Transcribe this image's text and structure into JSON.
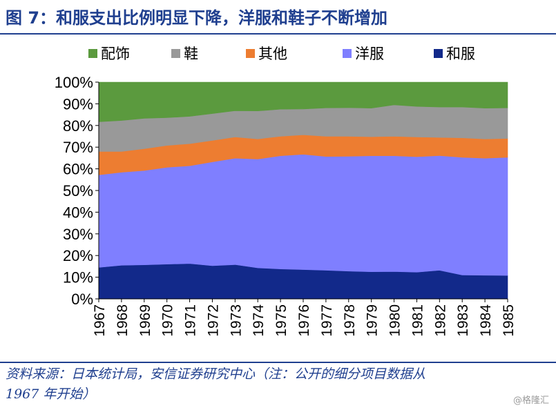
{
  "header": {
    "title": "图 7：和服支出比例明显下降，洋服和鞋子不断增加"
  },
  "footer": {
    "source_line1": "资料来源：日本统计局，安信证券研究中心（注：公开的细分项目数据从",
    "source_line2": "1967 年开始）",
    "watermark": "@格隆汇"
  },
  "colors": {
    "配饰": "#5B9A3E",
    "鞋": "#999999",
    "其他": "#ED7D31",
    "洋服": "#7F7FFF",
    "和服": "#12298A"
  },
  "chart_data": {
    "type": "area",
    "stacked": true,
    "title": "",
    "xlabel": "",
    "ylabel": "",
    "ylim": [
      0,
      100
    ],
    "y_tick_labels": [
      "0%",
      "10%",
      "20%",
      "30%",
      "40%",
      "50%",
      "60%",
      "70%",
      "80%",
      "90%",
      "100%"
    ],
    "legend_position": "top",
    "legend": [
      "配饰",
      "鞋",
      "其他",
      "洋服",
      "和服"
    ],
    "categories": [
      "1967",
      "1968",
      "1969",
      "1970",
      "1971",
      "1972",
      "1973",
      "1974",
      "1975",
      "1976",
      "1977",
      "1978",
      "1979",
      "1980",
      "1981",
      "1982",
      "1983",
      "1984",
      "1985"
    ],
    "series": [
      {
        "name": "和服",
        "values": [
          14.5,
          15.5,
          15.7,
          16.0,
          16.3,
          15.3,
          15.8,
          14.3,
          13.8,
          13.5,
          13.2,
          12.8,
          12.5,
          12.6,
          12.3,
          13.2,
          11.0,
          10.9,
          10.8
        ]
      },
      {
        "name": "洋服",
        "values": [
          42.7,
          42.9,
          43.5,
          44.7,
          45.1,
          47.9,
          49.1,
          50.2,
          52.2,
          53.2,
          52.5,
          53.0,
          53.5,
          53.4,
          53.3,
          52.9,
          54.3,
          54.0,
          54.5
        ]
      },
      {
        "name": "其他",
        "values": [
          10.8,
          9.6,
          10.1,
          10.1,
          10.2,
          9.9,
          9.8,
          9.3,
          9.0,
          9.0,
          9.3,
          9.2,
          8.8,
          9.0,
          9.1,
          8.4,
          9.0,
          8.9,
          8.7
        ]
      },
      {
        "name": "鞋",
        "values": [
          13.7,
          14.3,
          14.0,
          12.8,
          12.6,
          12.4,
          12.1,
          12.9,
          12.5,
          11.9,
          13.1,
          13.2,
          13.2,
          14.5,
          14.1,
          14.0,
          14.2,
          14.2,
          14.1
        ]
      },
      {
        "name": "配饰",
        "values": [
          18.3,
          17.7,
          16.7,
          16.4,
          15.8,
          14.5,
          13.2,
          13.3,
          12.5,
          12.4,
          11.9,
          11.8,
          12.0,
          10.5,
          11.2,
          11.5,
          11.5,
          12.0,
          11.9
        ]
      }
    ]
  }
}
